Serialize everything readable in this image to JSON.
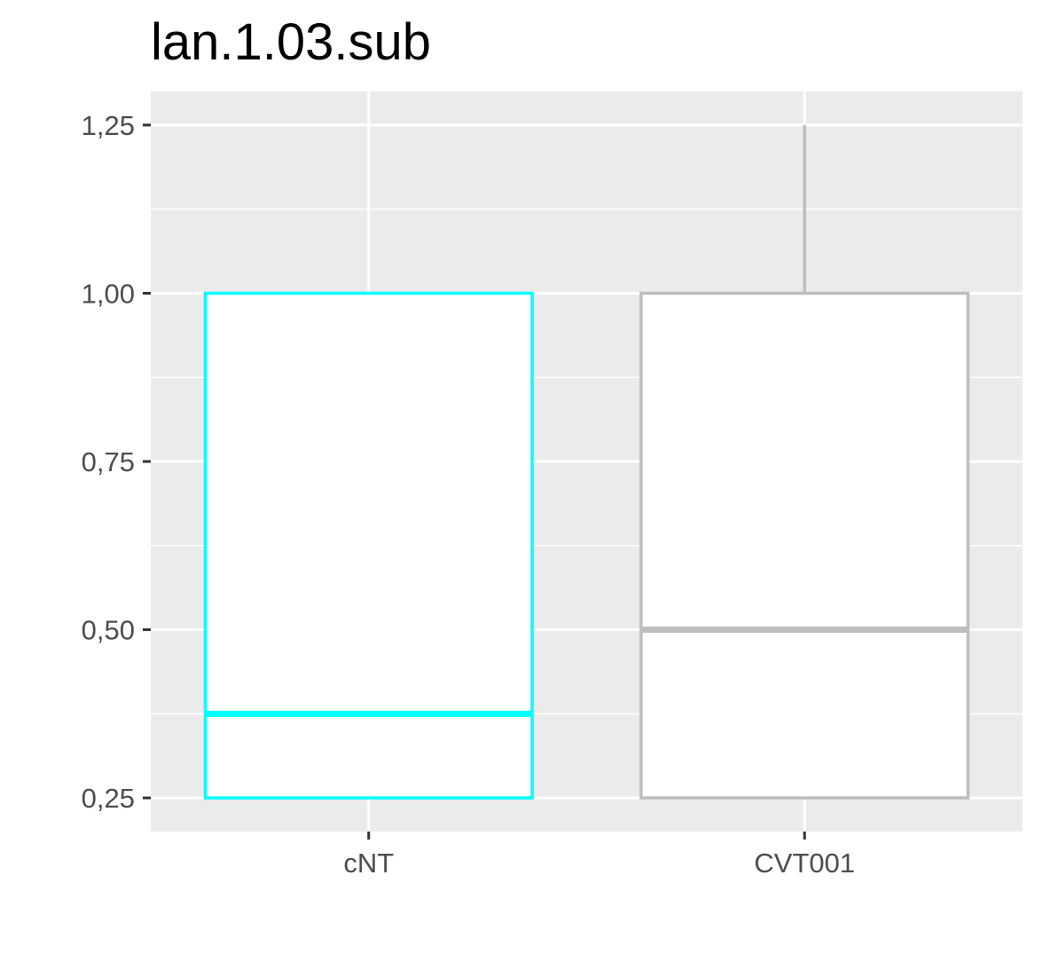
{
  "chart_data": {
    "type": "boxplot",
    "title": "lan.1.03.sub",
    "xlabel": "",
    "ylabel": "",
    "ylim": [
      0.2,
      1.3
    ],
    "y_ticks": [
      0.25,
      0.5,
      0.75,
      1.0,
      1.25
    ],
    "y_tick_labels": [
      "0,25",
      "0,50",
      "0,75",
      "1,00",
      "1,25"
    ],
    "y_minor_ticks": [
      0.375,
      0.625,
      0.875,
      1.125
    ],
    "categories": [
      "cNT",
      "CVT001"
    ],
    "boxes": [
      {
        "category": "cNT",
        "color": "#00FFFF",
        "whisker_low": 0.25,
        "q1": 0.25,
        "median": 0.375,
        "q3": 1.0,
        "whisker_high": 1.0
      },
      {
        "category": "CVT001",
        "color": "#BEBEBE",
        "whisker_low": 0.25,
        "q1": 0.25,
        "median": 0.5,
        "q3": 1.0,
        "whisker_high": 1.25
      }
    ],
    "grid": true,
    "legend": "none",
    "panel_background": "#EBEBEB",
    "box_fill": "#FFFFFF"
  }
}
